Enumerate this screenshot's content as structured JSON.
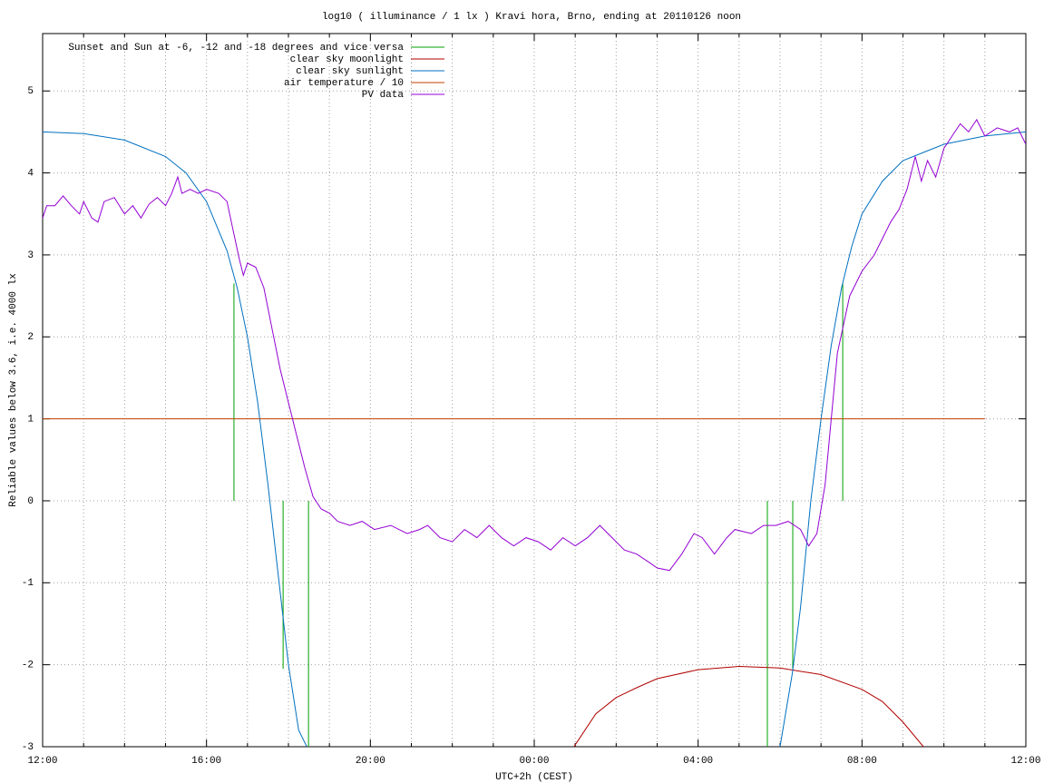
{
  "chart_data": {
    "type": "line",
    "title": "log10 ( illuminance / 1 lx ) Kravi hora, Brno, ending at 20110126 noon",
    "xlabel": "UTC+2h (CEST)",
    "ylabel": "Reliable values below 3.6, i.e. 4000 lx",
    "xlim": [
      0,
      24
    ],
    "ylim": [
      -3,
      5.7
    ],
    "xticks": [
      {
        "value": 0,
        "label": "12:00"
      },
      {
        "value": 4,
        "label": "16:00"
      },
      {
        "value": 8,
        "label": "20:00"
      },
      {
        "value": 12,
        "label": "00:00"
      },
      {
        "value": 16,
        "label": "04:00"
      },
      {
        "value": 20,
        "label": "08:00"
      },
      {
        "value": 24,
        "label": "12:00"
      }
    ],
    "xminor": [
      1,
      2,
      3,
      5,
      6,
      7,
      9,
      10,
      11,
      13,
      14,
      15,
      17,
      18,
      19,
      21,
      22,
      23
    ],
    "yticks": [
      -3,
      -2,
      -1,
      0,
      1,
      2,
      3,
      4,
      5
    ],
    "grid": true,
    "legend": "top-left",
    "series": [
      {
        "name": "Sunset and Sun at -6, -12 and -18 degrees and vice versa",
        "color": "#00a000",
        "style": "stems",
        "x": [
          4.67,
          5.87,
          6.49,
          17.69,
          18.31,
          19.53
        ],
        "values": [
          2.65,
          -2.05,
          -3,
          -3,
          -2.05,
          2.65
        ]
      },
      {
        "name": "clear sky moonlight",
        "color": "#b00000",
        "x": [
          12.97,
          13.5,
          14,
          14.5,
          15,
          16,
          17,
          18,
          19,
          20,
          20.5,
          21,
          21.5
        ],
        "values": [
          -3,
          -2.6,
          -2.4,
          -2.28,
          -2.17,
          -2.06,
          -2.02,
          -2.04,
          -2.12,
          -2.3,
          -2.45,
          -2.7,
          -3
        ]
      },
      {
        "name": "clear sky sunlight",
        "color": "#0070c0",
        "x": [
          0,
          1,
          2,
          3,
          3.5,
          4,
          4.5,
          4.75,
          5,
          5.25,
          5.5,
          5.75,
          6,
          6.25,
          6.45,
          null,
          18.0,
          18.3,
          18.5,
          18.75,
          19,
          19.25,
          19.5,
          19.75,
          20,
          20.5,
          21,
          22,
          23,
          24
        ],
        "values": [
          4.5,
          4.48,
          4.4,
          4.2,
          4.0,
          3.65,
          3.05,
          2.6,
          2.0,
          1.2,
          0.2,
          -0.9,
          -2.0,
          -2.8,
          -3,
          null,
          -3,
          -2.1,
          -1.3,
          0,
          1.0,
          1.9,
          2.6,
          3.1,
          3.5,
          3.9,
          4.15,
          4.35,
          4.45,
          4.5
        ]
      },
      {
        "name": "air temperature / 10",
        "color": "#c04000",
        "x": [
          0,
          23.0
        ],
        "values": [
          1.0,
          1.0
        ]
      },
      {
        "name": "PV data",
        "color": "#9400d3",
        "x": [
          0,
          0.1,
          0.3,
          0.5,
          0.7,
          0.9,
          1.0,
          1.2,
          1.35,
          1.5,
          1.75,
          2.0,
          2.2,
          2.4,
          2.6,
          2.8,
          3.0,
          3.15,
          3.3,
          3.4,
          3.6,
          3.8,
          4.0,
          4.3,
          4.5,
          4.65,
          4.8,
          4.9,
          5.0,
          5.2,
          5.4,
          5.6,
          5.8,
          6.0,
          6.2,
          6.4,
          6.6,
          6.8,
          7.0,
          7.2,
          7.5,
          7.8,
          8.1,
          8.5,
          8.9,
          9.2,
          9.4,
          9.7,
          10.0,
          10.3,
          10.6,
          10.9,
          11.2,
          11.5,
          11.8,
          12.1,
          12.4,
          12.7,
          13.0,
          13.3,
          13.6,
          13.9,
          14.2,
          14.5,
          14.8,
          15.0,
          15.3,
          15.6,
          15.9,
          16.1,
          16.4,
          16.7,
          16.9,
          17.3,
          17.6,
          17.9,
          18.2,
          18.5,
          18.7,
          18.9,
          19.1,
          19.4,
          19.7,
          20.0,
          20.3,
          20.5,
          20.7,
          20.9,
          21.1,
          21.3,
          21.45,
          21.6,
          21.8,
          22.0,
          22.2,
          22.4,
          22.6,
          22.8,
          23.0,
          23.3,
          23.6,
          23.8,
          24
        ],
        "values": [
          3.45,
          3.6,
          3.6,
          3.72,
          3.6,
          3.5,
          3.65,
          3.45,
          3.4,
          3.65,
          3.7,
          3.5,
          3.6,
          3.45,
          3.62,
          3.7,
          3.6,
          3.75,
          3.95,
          3.75,
          3.8,
          3.75,
          3.8,
          3.75,
          3.65,
          3.3,
          2.95,
          2.75,
          2.9,
          2.85,
          2.6,
          2.1,
          1.6,
          1.2,
          0.8,
          0.4,
          0.05,
          -0.1,
          -0.15,
          -0.25,
          -0.3,
          -0.25,
          -0.35,
          -0.3,
          -0.4,
          -0.35,
          -0.3,
          -0.45,
          -0.5,
          -0.35,
          -0.45,
          -0.3,
          -0.45,
          -0.55,
          -0.45,
          -0.5,
          -0.6,
          -0.45,
          -0.55,
          -0.45,
          -0.3,
          -0.45,
          -0.6,
          -0.65,
          -0.75,
          -0.82,
          -0.85,
          -0.65,
          -0.4,
          -0.45,
          -0.65,
          -0.45,
          -0.35,
          -0.4,
          -0.3,
          -0.3,
          -0.25,
          -0.35,
          -0.55,
          -0.4,
          0.2,
          1.8,
          2.5,
          2.8,
          3.0,
          3.2,
          3.4,
          3.55,
          3.8,
          4.2,
          3.9,
          4.15,
          3.95,
          4.3,
          4.45,
          4.6,
          4.5,
          4.65,
          4.45,
          4.55,
          4.5,
          4.55,
          4.35
        ]
      }
    ]
  }
}
